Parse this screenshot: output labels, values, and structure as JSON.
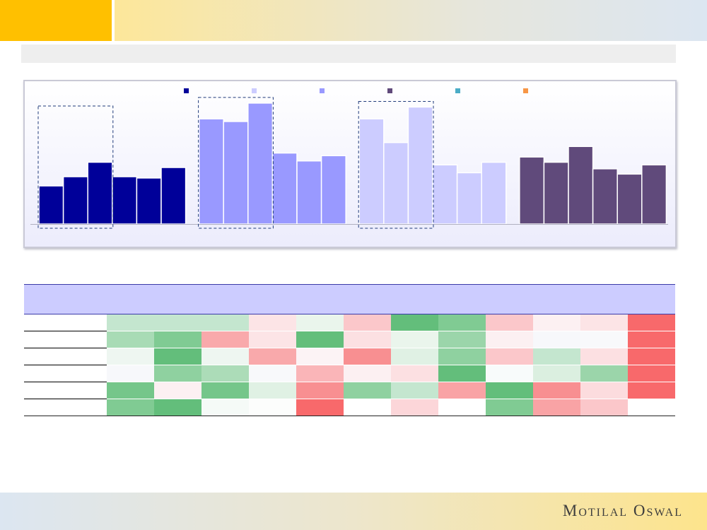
{
  "brand": {
    "logo_text": "Motilal Oswal"
  },
  "chart_data": {
    "type": "bar",
    "ylim": [
      0,
      100
    ],
    "legend": {
      "placement": "top",
      "labels": [
        "",
        "",
        "",
        "",
        "",
        ""
      ]
    },
    "legend_colors": [
      "#000099",
      "#ccccff",
      "#9999ff",
      "#604a7b",
      "#4bacc6",
      "#f79646"
    ],
    "groups": [
      {
        "color": "#000099",
        "values": [
          29,
          36,
          47,
          36,
          35,
          43
        ]
      },
      {
        "color": "#9999ff",
        "values": [
          80,
          78,
          92,
          54,
          48,
          52
        ]
      },
      {
        "color": "#ccccff",
        "values": [
          80,
          62,
          89,
          45,
          39,
          47
        ]
      },
      {
        "color": "#604a7b",
        "values": [
          51,
          47,
          59,
          42,
          38,
          45
        ]
      }
    ],
    "highlights": [
      {
        "group": 0,
        "from": 0,
        "to": 2
      },
      {
        "group": 1,
        "from": 0,
        "to": 2
      },
      {
        "group": 2,
        "from": 0,
        "to": 2
      }
    ]
  },
  "heatmap": {
    "headers": [
      "",
      "",
      "",
      "",
      "",
      "",
      "",
      "",
      "",
      "",
      "",
      ""
    ],
    "rows": [
      {
        "label": "",
        "cells": [
          "#c4e6cf",
          "#c4e6cf",
          "#c4e6cf",
          "#fce4e6",
          "#eaf5ec",
          "#fbc7ca",
          "#63be7b",
          "#80cb93",
          "#fbc7ca",
          "#fcf0f2",
          "#fce4e6",
          "#f8696b"
        ]
      },
      {
        "label": "",
        "cells": [
          "#a8dbb5",
          "#80cb93",
          "#f9a9ab",
          "#fce4e6",
          "#63be7b",
          "#fce0e2",
          "#eaf5ec",
          "#9bd5aa",
          "#fcf0f2",
          "#f7f8fb",
          "#f8f9fb",
          "#f8696b"
        ]
      },
      {
        "label": "",
        "cells": [
          "#eef6f1",
          "#63be7b",
          "#eef6f1",
          "#f9a9ab",
          "#fcf3f5",
          "#f88f91",
          "#e0f1e4",
          "#8fd1a0",
          "#fbc7ca",
          "#c4e6cf",
          "#fce0e2",
          "#f8696b"
        ]
      },
      {
        "label": "",
        "cells": [
          "#f7f8fb",
          "#8fd1a0",
          "#acdcb8",
          "#f8f9fb",
          "#fab5b8",
          "#fcf0f2",
          "#fce0e2",
          "#63be7b",
          "#f8fbfb",
          "#dbefe0",
          "#9bd5aa",
          "#f8696b"
        ]
      },
      {
        "label": "",
        "cells": [
          "#75c68a",
          "#fcf0f2",
          "#75c68a",
          "#e0f1e4",
          "#f88f91",
          "#8fd1a0",
          "#c4e6cf",
          "#f9a3a5",
          "#63be7b",
          "#f88f91",
          "#fcdcde",
          "#f8696b"
        ]
      },
      {
        "label": "",
        "cells": [
          "#80cb93",
          "#63be7b",
          "#f5faf7",
          "#fcfdfc",
          "#f8696b",
          "#ffffff",
          "#fcd6d9",
          "#ffffff",
          "#80cb93",
          "#f9a3a5",
          "#fbc7ca",
          "#ffffff"
        ]
      }
    ]
  }
}
